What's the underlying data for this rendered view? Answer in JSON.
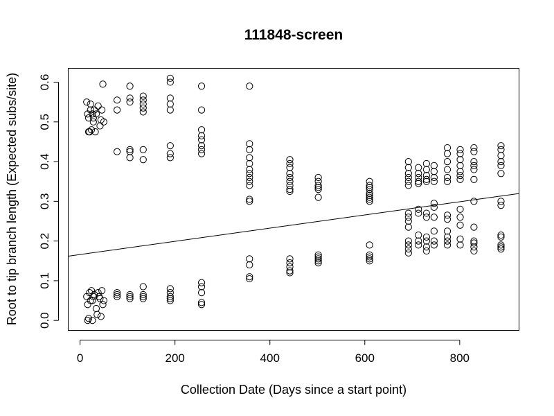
{
  "chart_data": {
    "type": "scatter",
    "title": "111848-screen",
    "xlabel": "Collection Date (Days since a start point)",
    "ylabel": "Root to tip branch length (Expected subs/site)",
    "xlim": [
      -25,
      925
    ],
    "ylim": [
      -0.025,
      0.635
    ],
    "xticks": [
      0,
      200,
      400,
      600,
      800
    ],
    "yticks": [
      0.0,
      0.1,
      0.2,
      0.3,
      0.4,
      0.5,
      0.6
    ],
    "xtick_labels": [
      "0",
      "200",
      "400",
      "600",
      "800"
    ],
    "ytick_labels": [
      "0.0",
      "0.1",
      "0.2",
      "0.3",
      "0.4",
      "0.5",
      "0.6"
    ],
    "grid": false,
    "marker": "open-circle",
    "regression_line": {
      "intercept": 0.166,
      "slope": 0.000166
    },
    "points": [
      [
        14,
        0.55
      ],
      [
        16,
        0.52
      ],
      [
        18,
        0.51
      ],
      [
        20,
        0.475
      ],
      [
        22,
        0.53
      ],
      [
        24,
        0.48
      ],
      [
        26,
        0.52
      ],
      [
        28,
        0.5
      ],
      [
        30,
        0.53
      ],
      [
        32,
        0.475
      ],
      [
        34,
        0.52
      ],
      [
        38,
        0.54
      ],
      [
        42,
        0.49
      ],
      [
        44,
        0.505
      ],
      [
        46,
        0.53
      ],
      [
        48,
        0.595
      ],
      [
        50,
        0.5
      ],
      [
        18,
        0.475
      ],
      [
        22,
        0.545
      ],
      [
        28,
        0.51
      ],
      [
        14,
        0.06
      ],
      [
        16,
        0.04
      ],
      [
        18,
        0.005
      ],
      [
        20,
        0.07
      ],
      [
        22,
        0.05
      ],
      [
        24,
        0.075
      ],
      [
        26,
        0.0
      ],
      [
        28,
        0.06
      ],
      [
        30,
        0.065
      ],
      [
        34,
        0.03
      ],
      [
        38,
        0.07
      ],
      [
        42,
        0.055
      ],
      [
        44,
        0.01
      ],
      [
        46,
        0.075
      ],
      [
        48,
        0.04
      ],
      [
        50,
        0.05
      ],
      [
        16,
        0.0
      ],
      [
        36,
        0.015
      ],
      [
        40,
        0.06
      ],
      [
        26,
        0.05
      ],
      [
        78,
        0.53
      ],
      [
        78,
        0.425
      ],
      [
        78,
        0.555
      ],
      [
        78,
        0.06
      ],
      [
        78,
        0.07
      ],
      [
        78,
        0.065
      ],
      [
        105,
        0.59
      ],
      [
        105,
        0.56
      ],
      [
        105,
        0.55
      ],
      [
        105,
        0.43
      ],
      [
        105,
        0.41
      ],
      [
        105,
        0.425
      ],
      [
        105,
        0.065
      ],
      [
        105,
        0.055
      ],
      [
        105,
        0.06
      ],
      [
        133,
        0.565
      ],
      [
        133,
        0.555
      ],
      [
        133,
        0.545
      ],
      [
        133,
        0.535
      ],
      [
        133,
        0.525
      ],
      [
        133,
        0.43
      ],
      [
        133,
        0.405
      ],
      [
        133,
        0.085
      ],
      [
        133,
        0.06
      ],
      [
        133,
        0.055
      ],
      [
        133,
        0.065
      ],
      [
        190,
        0.61
      ],
      [
        190,
        0.6
      ],
      [
        190,
        0.56
      ],
      [
        190,
        0.545
      ],
      [
        190,
        0.53
      ],
      [
        190,
        0.44
      ],
      [
        190,
        0.42
      ],
      [
        190,
        0.41
      ],
      [
        190,
        0.08
      ],
      [
        190,
        0.07
      ],
      [
        190,
        0.06
      ],
      [
        190,
        0.055
      ],
      [
        190,
        0.05
      ],
      [
        256,
        0.59
      ],
      [
        256,
        0.53
      ],
      [
        256,
        0.48
      ],
      [
        256,
        0.465
      ],
      [
        256,
        0.455
      ],
      [
        256,
        0.44
      ],
      [
        256,
        0.43
      ],
      [
        256,
        0.42
      ],
      [
        256,
        0.095
      ],
      [
        256,
        0.085
      ],
      [
        256,
        0.07
      ],
      [
        256,
        0.045
      ],
      [
        256,
        0.04
      ],
      [
        357,
        0.59
      ],
      [
        357,
        0.445
      ],
      [
        357,
        0.43
      ],
      [
        357,
        0.41
      ],
      [
        357,
        0.395
      ],
      [
        357,
        0.38
      ],
      [
        357,
        0.37
      ],
      [
        357,
        0.36
      ],
      [
        357,
        0.35
      ],
      [
        357,
        0.34
      ],
      [
        357,
        0.305
      ],
      [
        357,
        0.3
      ],
      [
        357,
        0.155
      ],
      [
        357,
        0.14
      ],
      [
        357,
        0.11
      ],
      [
        357,
        0.105
      ],
      [
        442,
        0.405
      ],
      [
        442,
        0.395
      ],
      [
        442,
        0.385
      ],
      [
        442,
        0.37
      ],
      [
        442,
        0.36
      ],
      [
        442,
        0.35
      ],
      [
        442,
        0.34
      ],
      [
        442,
        0.33
      ],
      [
        442,
        0.325
      ],
      [
        442,
        0.155
      ],
      [
        442,
        0.145
      ],
      [
        442,
        0.135
      ],
      [
        442,
        0.125
      ],
      [
        442,
        0.12
      ],
      [
        502,
        0.36
      ],
      [
        502,
        0.35
      ],
      [
        502,
        0.34
      ],
      [
        502,
        0.335
      ],
      [
        502,
        0.33
      ],
      [
        502,
        0.31
      ],
      [
        502,
        0.165
      ],
      [
        502,
        0.16
      ],
      [
        502,
        0.155
      ],
      [
        502,
        0.15
      ],
      [
        502,
        0.145
      ],
      [
        610,
        0.35
      ],
      [
        610,
        0.34
      ],
      [
        610,
        0.335
      ],
      [
        610,
        0.33
      ],
      [
        610,
        0.32
      ],
      [
        610,
        0.315
      ],
      [
        610,
        0.31
      ],
      [
        610,
        0.305
      ],
      [
        610,
        0.3
      ],
      [
        610,
        0.19
      ],
      [
        610,
        0.165
      ],
      [
        610,
        0.16
      ],
      [
        610,
        0.155
      ],
      [
        610,
        0.15
      ],
      [
        692,
        0.4
      ],
      [
        692,
        0.385
      ],
      [
        692,
        0.37
      ],
      [
        692,
        0.36
      ],
      [
        692,
        0.35
      ],
      [
        692,
        0.34
      ],
      [
        692,
        0.27
      ],
      [
        692,
        0.26
      ],
      [
        692,
        0.25
      ],
      [
        692,
        0.235
      ],
      [
        692,
        0.2
      ],
      [
        692,
        0.19
      ],
      [
        692,
        0.18
      ],
      [
        692,
        0.17
      ],
      [
        713,
        0.385
      ],
      [
        713,
        0.37
      ],
      [
        713,
        0.36
      ],
      [
        713,
        0.35
      ],
      [
        713,
        0.345
      ],
      [
        713,
        0.28
      ],
      [
        713,
        0.27
      ],
      [
        713,
        0.215
      ],
      [
        713,
        0.2
      ],
      [
        713,
        0.19
      ],
      [
        730,
        0.395
      ],
      [
        730,
        0.38
      ],
      [
        730,
        0.365
      ],
      [
        730,
        0.355
      ],
      [
        730,
        0.35
      ],
      [
        730,
        0.27
      ],
      [
        730,
        0.26
      ],
      [
        730,
        0.21
      ],
      [
        730,
        0.2
      ],
      [
        730,
        0.185
      ],
      [
        730,
        0.175
      ],
      [
        746,
        0.39
      ],
      [
        746,
        0.375
      ],
      [
        746,
        0.36
      ],
      [
        746,
        0.35
      ],
      [
        746,
        0.295
      ],
      [
        746,
        0.285
      ],
      [
        746,
        0.26
      ],
      [
        746,
        0.225
      ],
      [
        746,
        0.2
      ],
      [
        746,
        0.19
      ],
      [
        774,
        0.435
      ],
      [
        774,
        0.42
      ],
      [
        774,
        0.4
      ],
      [
        774,
        0.38
      ],
      [
        774,
        0.36
      ],
      [
        774,
        0.35
      ],
      [
        774,
        0.265
      ],
      [
        774,
        0.255
      ],
      [
        774,
        0.225
      ],
      [
        774,
        0.21
      ],
      [
        774,
        0.2
      ],
      [
        774,
        0.19
      ],
      [
        801,
        0.43
      ],
      [
        801,
        0.42
      ],
      [
        801,
        0.405
      ],
      [
        801,
        0.39
      ],
      [
        801,
        0.375
      ],
      [
        801,
        0.365
      ],
      [
        801,
        0.355
      ],
      [
        801,
        0.28
      ],
      [
        801,
        0.26
      ],
      [
        801,
        0.24
      ],
      [
        801,
        0.205
      ],
      [
        801,
        0.19
      ],
      [
        830,
        0.435
      ],
      [
        830,
        0.425
      ],
      [
        830,
        0.4
      ],
      [
        830,
        0.39
      ],
      [
        830,
        0.38
      ],
      [
        830,
        0.355
      ],
      [
        830,
        0.3
      ],
      [
        830,
        0.235
      ],
      [
        830,
        0.2
      ],
      [
        830,
        0.195
      ],
      [
        830,
        0.185
      ],
      [
        830,
        0.175
      ],
      [
        887,
        0.44
      ],
      [
        887,
        0.43
      ],
      [
        887,
        0.415
      ],
      [
        887,
        0.4
      ],
      [
        887,
        0.39
      ],
      [
        887,
        0.37
      ],
      [
        887,
        0.3
      ],
      [
        887,
        0.29
      ],
      [
        887,
        0.215
      ],
      [
        887,
        0.21
      ],
      [
        887,
        0.19
      ],
      [
        887,
        0.185
      ],
      [
        887,
        0.18
      ]
    ]
  }
}
